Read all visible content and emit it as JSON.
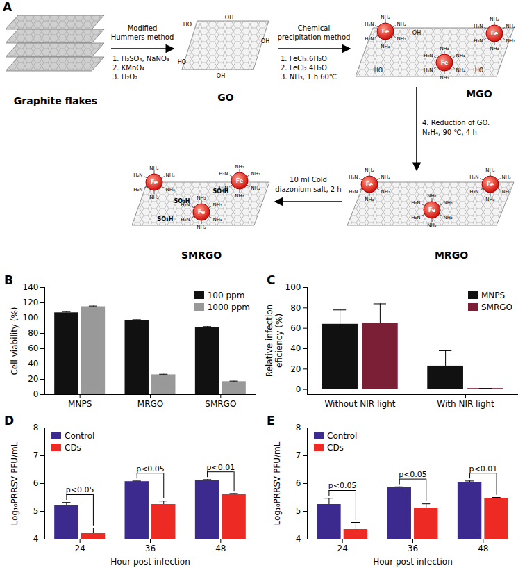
{
  "diagram": {
    "title": "A",
    "stages": [
      "Graphite flakes",
      "GO",
      "MGO",
      "MRGO",
      "SMRGO"
    ],
    "steps": [
      {
        "from": "Graphite flakes",
        "to": "GO",
        "above": [
          "Modified",
          "Hummers method"
        ],
        "below": [
          "1. H₂SO₄, NaNO₃",
          "2. KMnO₄",
          "3. H₂O₂"
        ]
      },
      {
        "from": "GO",
        "to": "MGO",
        "above": [
          "Chemical",
          "precipitation method"
        ],
        "below": [
          "1. FeCl₃.6H₂O",
          "2. FeCl₂.4H₂O",
          "3. NH₃, 1 h 60℃"
        ]
      },
      {
        "from": "MGO",
        "to": "MRGO",
        "below": [
          "4. Reduction of GO.",
          "N₂H₄, 90 ℃, 4 h"
        ]
      },
      {
        "from": "MRGO",
        "to": "SMRGO",
        "above": [
          "10 ml Cold",
          "diazonium salt, 2 h"
        ]
      }
    ],
    "group_labels": {
      "particle": "Fe",
      "amine_right": "NH₂",
      "amine_left": "H₂N",
      "sulfonate": "SO₃H",
      "hydroxyl_right": "OH",
      "hydroxyl_left": "HO"
    }
  },
  "chart_data": [
    {
      "type": "bar",
      "title": "B",
      "categories": [
        "MNPS",
        "MRGO",
        "SMRGO"
      ],
      "series": [
        {
          "name": "100 ppm",
          "color": "#111111",
          "values": [
            107,
            97,
            88
          ],
          "errors": [
            1.5,
            0.8,
            0.8
          ]
        },
        {
          "name": "1000 ppm",
          "color": "#999999",
          "values": [
            115,
            26,
            17
          ],
          "errors": [
            0.8,
            0.6,
            0.6
          ]
        }
      ],
      "ylabel": "Cell viability (%)",
      "ylim": [
        0,
        140
      ],
      "yticks": [
        0,
        20,
        40,
        60,
        80,
        100,
        120,
        140
      ],
      "legend": "top-right"
    },
    {
      "type": "bar",
      "title": "C",
      "categories": [
        "Without NIR light",
        "With NIR light"
      ],
      "series": [
        {
          "name": "MNPS",
          "color": "#111111",
          "values": [
            64,
            23
          ],
          "errors": [
            14,
            15
          ]
        },
        {
          "name": "SMRGO",
          "color": "#7a1f35",
          "values": [
            65,
            1
          ],
          "errors": [
            19,
            0
          ]
        }
      ],
      "ylabel": "Relative infection\neficiency (%)",
      "ylim": [
        -5,
        100
      ],
      "yticks": [
        0,
        20,
        40,
        60,
        80,
        100
      ],
      "legend": "top-right"
    },
    {
      "type": "bar",
      "title": "D",
      "categories": [
        "24",
        "36",
        "48"
      ],
      "series": [
        {
          "name": "Control",
          "color": "#3d2a8f",
          "values": [
            5.2,
            6.07,
            6.1
          ],
          "errors": [
            0.12,
            0.02,
            0.04
          ]
        },
        {
          "name": "CDs",
          "color": "#ee2a24",
          "values": [
            4.2,
            5.25,
            5.6
          ],
          "errors": [
            0.2,
            0.12,
            0.04
          ]
        }
      ],
      "xlabel": "Hour post infection",
      "ylabel": "Log₁₀PRRSV PFU/mL",
      "ylim": [
        4,
        8
      ],
      "yticks": [
        4,
        5,
        6,
        7,
        8
      ],
      "legend": "top-left",
      "annotations": [
        {
          "category": "24",
          "text": "p<0.05"
        },
        {
          "category": "36",
          "text": "p<0.05"
        },
        {
          "category": "48",
          "text": "p<0.01"
        }
      ]
    },
    {
      "type": "bar",
      "title": "E",
      "categories": [
        "24",
        "36",
        "48"
      ],
      "series": [
        {
          "name": "Control",
          "color": "#3d2a8f",
          "values": [
            5.25,
            5.85,
            6.05
          ],
          "errors": [
            0.22,
            0.03,
            0.04
          ]
        },
        {
          "name": "CDs",
          "color": "#ee2a24",
          "values": [
            4.35,
            5.12,
            5.47
          ],
          "errors": [
            0.25,
            0.15,
            0.03
          ]
        }
      ],
      "xlabel": "Hour post infection",
      "ylabel": "Log₁₀PRRSV PFU/mL",
      "ylim": [
        4,
        8
      ],
      "yticks": [
        4,
        5,
        6,
        7,
        8
      ],
      "legend": "top-left",
      "annotations": [
        {
          "category": "24",
          "text": "p<0.05"
        },
        {
          "category": "36",
          "text": "p<0.05"
        },
        {
          "category": "48",
          "text": "p<0.01"
        }
      ]
    }
  ]
}
